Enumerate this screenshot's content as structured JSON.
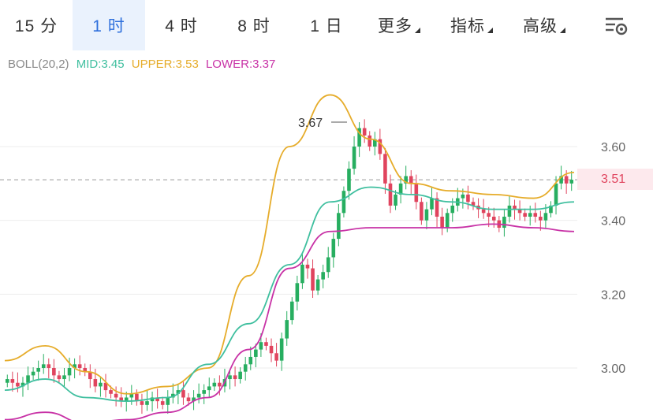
{
  "tabs": {
    "m15": "15 分",
    "h1": "1 时",
    "h4": "4 时",
    "h8": "8 时",
    "d1": "1 日",
    "more": "更多",
    "indicator": "指标",
    "advanced": "高级"
  },
  "legend": {
    "boll": "BOLL(20,2)",
    "mid": "MID:3.45",
    "upper": "UPPER:3.53",
    "lower": "LOWER:3.37"
  },
  "last_price": "3.51",
  "max_label": "3.67",
  "colors": {
    "accent": "#2d6fdc",
    "up": "#27ae60",
    "down": "#e0445e",
    "mid": "#3fbf9f",
    "upper": "#e6ac2a",
    "lower": "#c832a6",
    "axis_text": "#666666"
  },
  "chart_data": {
    "type": "candlestick",
    "indicator": "BOLL(20,2)",
    "y_axis": {
      "side": "right",
      "ticks": [
        3.0,
        3.2,
        3.4,
        3.6
      ],
      "tick_labels": [
        "3.00",
        "3.20",
        "3.40",
        "3.60"
      ]
    },
    "grid": "horizontal",
    "last_price": 3.51,
    "max_marker": 3.67,
    "candles_close": [
      2.97,
      2.96,
      2.95,
      2.96,
      2.98,
      2.99,
      3.0,
      3.01,
      3.0,
      2.98,
      2.97,
      2.98,
      3.0,
      3.01,
      3.0,
      2.99,
      2.97,
      2.95,
      2.96,
      2.94,
      2.93,
      2.92,
      2.91,
      2.92,
      2.93,
      2.91,
      2.9,
      2.91,
      2.92,
      2.91,
      2.9,
      2.92,
      2.93,
      2.94,
      2.92,
      2.91,
      2.92,
      2.93,
      2.94,
      2.95,
      2.96,
      2.95,
      2.97,
      2.98,
      2.97,
      2.99,
      3.01,
      3.03,
      3.05,
      3.07,
      3.06,
      3.04,
      3.02,
      3.08,
      3.13,
      3.18,
      3.23,
      3.28,
      3.27,
      3.21,
      3.24,
      3.26,
      3.3,
      3.35,
      3.42,
      3.48,
      3.54,
      3.6,
      3.65,
      3.63,
      3.6,
      3.62,
      3.58,
      3.5,
      3.44,
      3.47,
      3.5,
      3.52,
      3.5,
      3.45,
      3.4,
      3.43,
      3.46,
      3.41,
      3.38,
      3.42,
      3.44,
      3.46,
      3.47,
      3.45,
      3.44,
      3.43,
      3.42,
      3.41,
      3.4,
      3.38,
      3.41,
      3.44,
      3.43,
      3.42,
      3.41,
      3.42,
      3.41,
      3.4,
      3.42,
      3.44,
      3.5,
      3.52,
      3.5,
      3.51
    ],
    "mid": [
      2.94,
      2.97,
      2.92,
      2.91,
      2.92,
      3.01,
      3.12,
      3.28,
      3.45,
      3.49,
      3.47,
      3.45,
      3.43,
      3.43,
      3.45
    ],
    "upper": [
      3.02,
      3.06,
      2.99,
      2.93,
      2.95,
      3.0,
      3.25,
      3.6,
      3.74,
      3.62,
      3.5,
      3.48,
      3.47,
      3.46,
      3.53
    ],
    "lower": [
      2.86,
      2.88,
      2.85,
      2.86,
      2.88,
      2.92,
      3.05,
      3.27,
      3.37,
      3.38,
      3.38,
      3.38,
      3.39,
      3.38,
      3.37
    ]
  }
}
